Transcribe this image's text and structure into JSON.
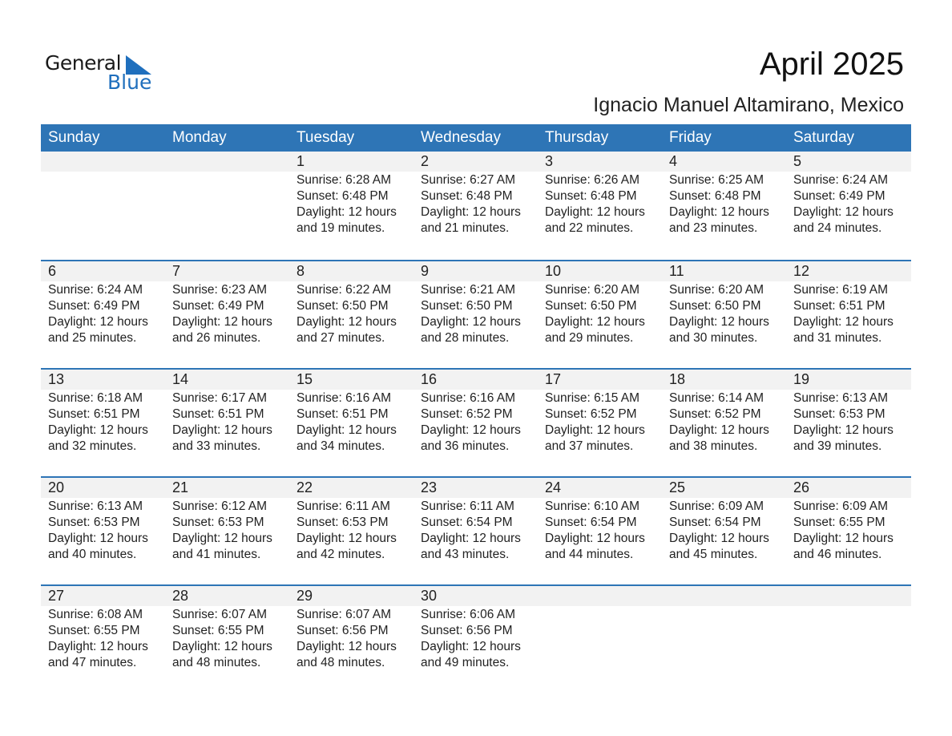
{
  "logo": {
    "line1": "General",
    "line2": "Blue",
    "accent": "#1f6fbd"
  },
  "title": "April 2025",
  "location": "Ignacio Manuel Altamirano, Mexico",
  "header_color": "#2e75b6",
  "days": [
    "Sunday",
    "Monday",
    "Tuesday",
    "Wednesday",
    "Thursday",
    "Friday",
    "Saturday"
  ],
  "weeks": [
    [
      null,
      null,
      {
        "date": "1",
        "sunrise": "Sunrise: 6:28 AM",
        "sunset": "Sunset: 6:48 PM",
        "daylight": "Daylight: 12 hours",
        "minutes": "and 19 minutes."
      },
      {
        "date": "2",
        "sunrise": "Sunrise: 6:27 AM",
        "sunset": "Sunset: 6:48 PM",
        "daylight": "Daylight: 12 hours",
        "minutes": "and 21 minutes."
      },
      {
        "date": "3",
        "sunrise": "Sunrise: 6:26 AM",
        "sunset": "Sunset: 6:48 PM",
        "daylight": "Daylight: 12 hours",
        "minutes": "and 22 minutes."
      },
      {
        "date": "4",
        "sunrise": "Sunrise: 6:25 AM",
        "sunset": "Sunset: 6:48 PM",
        "daylight": "Daylight: 12 hours",
        "minutes": "and 23 minutes."
      },
      {
        "date": "5",
        "sunrise": "Sunrise: 6:24 AM",
        "sunset": "Sunset: 6:49 PM",
        "daylight": "Daylight: 12 hours",
        "minutes": "and 24 minutes."
      }
    ],
    [
      {
        "date": "6",
        "sunrise": "Sunrise: 6:24 AM",
        "sunset": "Sunset: 6:49 PM",
        "daylight": "Daylight: 12 hours",
        "minutes": "and 25 minutes."
      },
      {
        "date": "7",
        "sunrise": "Sunrise: 6:23 AM",
        "sunset": "Sunset: 6:49 PM",
        "daylight": "Daylight: 12 hours",
        "minutes": "and 26 minutes."
      },
      {
        "date": "8",
        "sunrise": "Sunrise: 6:22 AM",
        "sunset": "Sunset: 6:50 PM",
        "daylight": "Daylight: 12 hours",
        "minutes": "and 27 minutes."
      },
      {
        "date": "9",
        "sunrise": "Sunrise: 6:21 AM",
        "sunset": "Sunset: 6:50 PM",
        "daylight": "Daylight: 12 hours",
        "minutes": "and 28 minutes."
      },
      {
        "date": "10",
        "sunrise": "Sunrise: 6:20 AM",
        "sunset": "Sunset: 6:50 PM",
        "daylight": "Daylight: 12 hours",
        "minutes": "and 29 minutes."
      },
      {
        "date": "11",
        "sunrise": "Sunrise: 6:20 AM",
        "sunset": "Sunset: 6:50 PM",
        "daylight": "Daylight: 12 hours",
        "minutes": "and 30 minutes."
      },
      {
        "date": "12",
        "sunrise": "Sunrise: 6:19 AM",
        "sunset": "Sunset: 6:51 PM",
        "daylight": "Daylight: 12 hours",
        "minutes": "and 31 minutes."
      }
    ],
    [
      {
        "date": "13",
        "sunrise": "Sunrise: 6:18 AM",
        "sunset": "Sunset: 6:51 PM",
        "daylight": "Daylight: 12 hours",
        "minutes": "and 32 minutes."
      },
      {
        "date": "14",
        "sunrise": "Sunrise: 6:17 AM",
        "sunset": "Sunset: 6:51 PM",
        "daylight": "Daylight: 12 hours",
        "minutes": "and 33 minutes."
      },
      {
        "date": "15",
        "sunrise": "Sunrise: 6:16 AM",
        "sunset": "Sunset: 6:51 PM",
        "daylight": "Daylight: 12 hours",
        "minutes": "and 34 minutes."
      },
      {
        "date": "16",
        "sunrise": "Sunrise: 6:16 AM",
        "sunset": "Sunset: 6:52 PM",
        "daylight": "Daylight: 12 hours",
        "minutes": "and 36 minutes."
      },
      {
        "date": "17",
        "sunrise": "Sunrise: 6:15 AM",
        "sunset": "Sunset: 6:52 PM",
        "daylight": "Daylight: 12 hours",
        "minutes": "and 37 minutes."
      },
      {
        "date": "18",
        "sunrise": "Sunrise: 6:14 AM",
        "sunset": "Sunset: 6:52 PM",
        "daylight": "Daylight: 12 hours",
        "minutes": "and 38 minutes."
      },
      {
        "date": "19",
        "sunrise": "Sunrise: 6:13 AM",
        "sunset": "Sunset: 6:53 PM",
        "daylight": "Daylight: 12 hours",
        "minutes": "and 39 minutes."
      }
    ],
    [
      {
        "date": "20",
        "sunrise": "Sunrise: 6:13 AM",
        "sunset": "Sunset: 6:53 PM",
        "daylight": "Daylight: 12 hours",
        "minutes": "and 40 minutes."
      },
      {
        "date": "21",
        "sunrise": "Sunrise: 6:12 AM",
        "sunset": "Sunset: 6:53 PM",
        "daylight": "Daylight: 12 hours",
        "minutes": "and 41 minutes."
      },
      {
        "date": "22",
        "sunrise": "Sunrise: 6:11 AM",
        "sunset": "Sunset: 6:53 PM",
        "daylight": "Daylight: 12 hours",
        "minutes": "and 42 minutes."
      },
      {
        "date": "23",
        "sunrise": "Sunrise: 6:11 AM",
        "sunset": "Sunset: 6:54 PM",
        "daylight": "Daylight: 12 hours",
        "minutes": "and 43 minutes."
      },
      {
        "date": "24",
        "sunrise": "Sunrise: 6:10 AM",
        "sunset": "Sunset: 6:54 PM",
        "daylight": "Daylight: 12 hours",
        "minutes": "and 44 minutes."
      },
      {
        "date": "25",
        "sunrise": "Sunrise: 6:09 AM",
        "sunset": "Sunset: 6:54 PM",
        "daylight": "Daylight: 12 hours",
        "minutes": "and 45 minutes."
      },
      {
        "date": "26",
        "sunrise": "Sunrise: 6:09 AM",
        "sunset": "Sunset: 6:55 PM",
        "daylight": "Daylight: 12 hours",
        "minutes": "and 46 minutes."
      }
    ],
    [
      {
        "date": "27",
        "sunrise": "Sunrise: 6:08 AM",
        "sunset": "Sunset: 6:55 PM",
        "daylight": "Daylight: 12 hours",
        "minutes": "and 47 minutes."
      },
      {
        "date": "28",
        "sunrise": "Sunrise: 6:07 AM",
        "sunset": "Sunset: 6:55 PM",
        "daylight": "Daylight: 12 hours",
        "minutes": "and 48 minutes."
      },
      {
        "date": "29",
        "sunrise": "Sunrise: 6:07 AM",
        "sunset": "Sunset: 6:56 PM",
        "daylight": "Daylight: 12 hours",
        "minutes": "and 48 minutes."
      },
      {
        "date": "30",
        "sunrise": "Sunrise: 6:06 AM",
        "sunset": "Sunset: 6:56 PM",
        "daylight": "Daylight: 12 hours",
        "minutes": "and 49 minutes."
      },
      null,
      null,
      null
    ]
  ]
}
